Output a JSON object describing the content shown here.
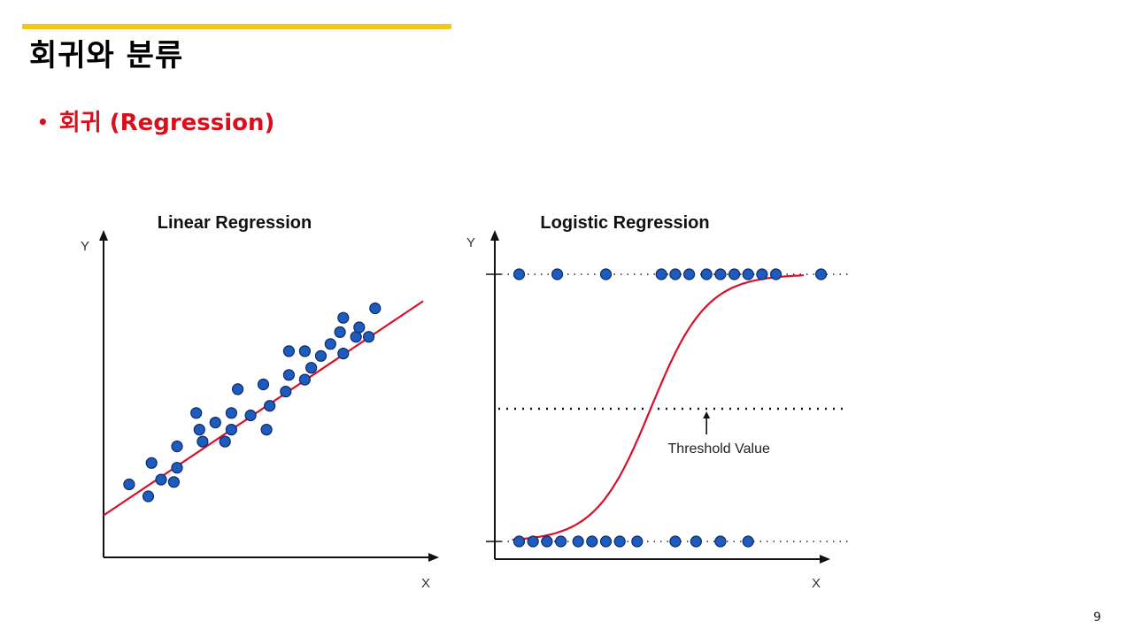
{
  "slide": {
    "title": "회귀와 분류",
    "bullet": "회귀 (Regression)",
    "page_number": "9"
  },
  "colors": {
    "accent_bar": "#f5c518",
    "bullet_text": "#d9101c",
    "fit_line": "#d8102a",
    "point_fill": "#1e5bbf"
  },
  "chart_data": [
    {
      "type": "scatter",
      "title": "Linear Regression",
      "xlabel": "X",
      "ylabel": "Y",
      "xlim": [
        0,
        100
      ],
      "ylim": [
        0,
        100
      ],
      "grid": false,
      "points": [
        {
          "x": 8,
          "y": 21
        },
        {
          "x": 14,
          "y": 16
        },
        {
          "x": 15,
          "y": 30
        },
        {
          "x": 18,
          "y": 23
        },
        {
          "x": 22,
          "y": 22
        },
        {
          "x": 23,
          "y": 28
        },
        {
          "x": 23,
          "y": 37
        },
        {
          "x": 29,
          "y": 51
        },
        {
          "x": 30,
          "y": 44
        },
        {
          "x": 31,
          "y": 39
        },
        {
          "x": 35,
          "y": 47
        },
        {
          "x": 38,
          "y": 39
        },
        {
          "x": 40,
          "y": 44
        },
        {
          "x": 40,
          "y": 51
        },
        {
          "x": 42,
          "y": 61
        },
        {
          "x": 46,
          "y": 50
        },
        {
          "x": 50,
          "y": 63
        },
        {
          "x": 51,
          "y": 44
        },
        {
          "x": 52,
          "y": 54
        },
        {
          "x": 57,
          "y": 60
        },
        {
          "x": 58,
          "y": 67
        },
        {
          "x": 58,
          "y": 77
        },
        {
          "x": 63,
          "y": 65
        },
        {
          "x": 63,
          "y": 77
        },
        {
          "x": 65,
          "y": 70
        },
        {
          "x": 68,
          "y": 75
        },
        {
          "x": 71,
          "y": 80
        },
        {
          "x": 74,
          "y": 85
        },
        {
          "x": 75,
          "y": 76
        },
        {
          "x": 75,
          "y": 91
        },
        {
          "x": 79,
          "y": 83
        },
        {
          "x": 80,
          "y": 87
        },
        {
          "x": 83,
          "y": 83
        },
        {
          "x": 85,
          "y": 95
        }
      ],
      "fit_line": {
        "x": [
          0,
          100
        ],
        "y": [
          8,
          98
        ]
      }
    },
    {
      "type": "scatter",
      "title": "Logistic Regression",
      "xlabel": "X",
      "ylabel": "Y",
      "xlim": [
        0,
        100
      ],
      "ylim": [
        0,
        1
      ],
      "grid": false,
      "threshold": {
        "y": 0.5,
        "label": "Threshold Value",
        "marker_x": 60
      },
      "points_top": [
        6,
        17,
        31,
        47,
        51,
        55,
        60,
        64,
        68,
        72,
        76,
        80,
        93
      ],
      "points_bottom": [
        6,
        10,
        14,
        18,
        23,
        27,
        31,
        35,
        40,
        51,
        57,
        64,
        72
      ],
      "curve": {
        "type": "sigmoid",
        "midpoint": 44,
        "steepness": 0.125,
        "x_range": [
          4,
          88
        ]
      }
    }
  ]
}
